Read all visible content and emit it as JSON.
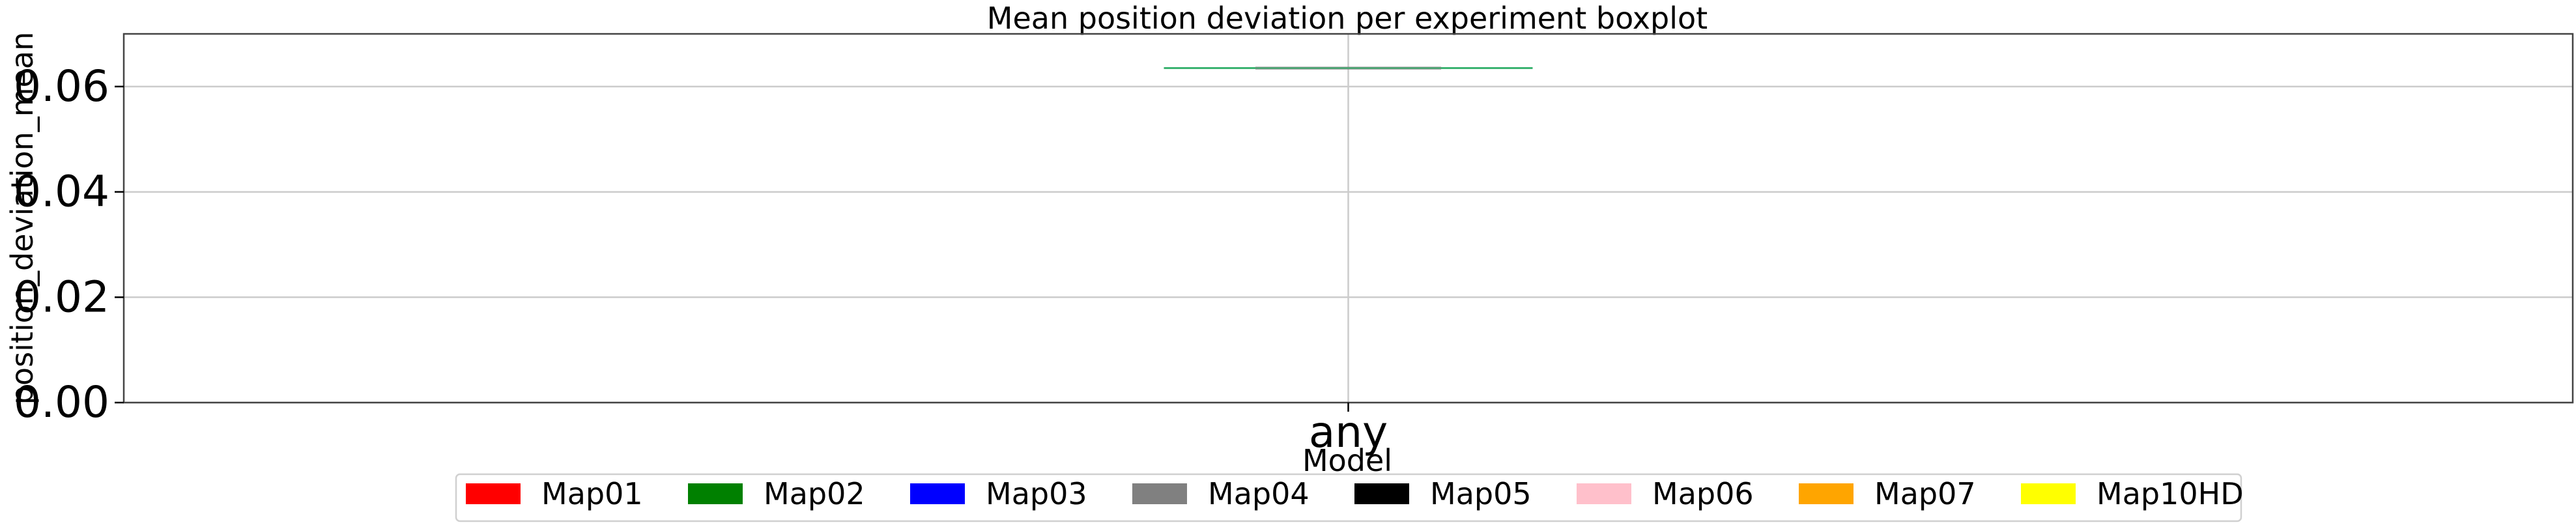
{
  "chart_data": {
    "type": "boxplot",
    "title": "Mean position deviation per experiment boxplot",
    "xlabel": "Model",
    "ylabel": "position_deviation_mean",
    "categories": [
      "any"
    ],
    "ylim": [
      0.0,
      0.07
    ],
    "yticks": [
      0.0,
      0.02,
      0.04,
      0.06
    ],
    "ytick_labels": [
      "0.00",
      "0.02",
      "0.04",
      "0.06"
    ],
    "grid": true,
    "legend_position": "bottom-center",
    "box": {
      "category": "any",
      "min": 0.0635,
      "q1": 0.0635,
      "median": 0.0635,
      "q3": 0.0635,
      "max": 0.0635,
      "box_color": "#808080",
      "whisker_color": "#3cb371"
    },
    "legend": [
      {
        "label": "Map01",
        "color": "#ff0000"
      },
      {
        "label": "Map02",
        "color": "#008000"
      },
      {
        "label": "Map03",
        "color": "#0000ff"
      },
      {
        "label": "Map04",
        "color": "#808080"
      },
      {
        "label": "Map05",
        "color": "#000000"
      },
      {
        "label": "Map06",
        "color": "#ffc0cb"
      },
      {
        "label": "Map07",
        "color": "#ffa500"
      },
      {
        "label": "Map10HD",
        "color": "#ffff00"
      }
    ]
  }
}
